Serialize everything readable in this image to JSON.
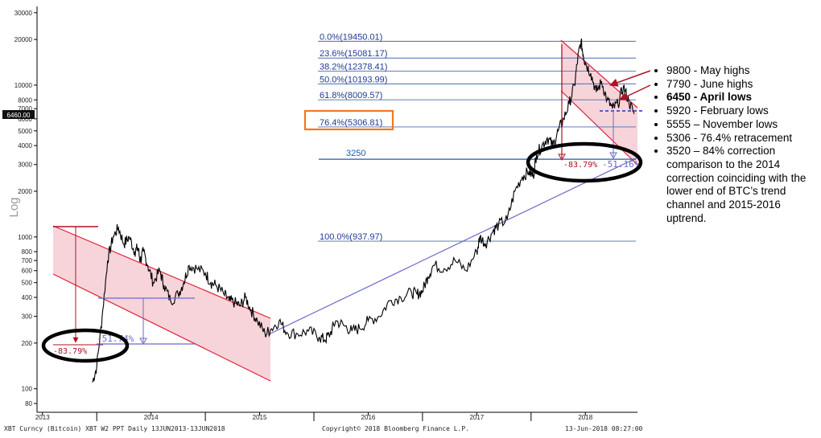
{
  "chart_data": {
    "type": "line",
    "title": "",
    "ylabel": "Log",
    "yscale": "log",
    "ylim": [
      70,
      33000
    ],
    "y_ticks": [
      {
        "value": 30000,
        "label": "30000"
      },
      {
        "value": 20000,
        "label": "20000"
      },
      {
        "value": 10000,
        "label": "10000"
      },
      {
        "value": 8000,
        "label": "8000"
      },
      {
        "value": 7000,
        "label": "7000"
      },
      {
        "value": 6000,
        "label": "6000"
      },
      {
        "value": 5000,
        "label": "5000"
      },
      {
        "value": 4000,
        "label": "4000"
      },
      {
        "value": 3000,
        "label": "3000"
      },
      {
        "value": 2000,
        "label": "2000"
      },
      {
        "value": 1000,
        "label": "1000"
      },
      {
        "value": 800,
        "label": "800"
      },
      {
        "value": 700,
        "label": "700"
      },
      {
        "value": 600,
        "label": "600"
      },
      {
        "value": 500,
        "label": "500"
      },
      {
        "value": 400,
        "label": "400"
      },
      {
        "value": 300,
        "label": "300"
      },
      {
        "value": 200,
        "label": "200"
      },
      {
        "value": 100,
        "label": "100"
      },
      {
        "value": 80,
        "label": "80"
      }
    ],
    "x_labels": [
      {
        "t": 2013.0,
        "label": "2013"
      },
      {
        "t": 2014.0,
        "label": "2014"
      },
      {
        "t": 2015.0,
        "label": "2015"
      },
      {
        "t": 2016.0,
        "label": "2016"
      },
      {
        "t": 2017.0,
        "label": "2017"
      },
      {
        "t": 2018.0,
        "label": "2018"
      }
    ],
    "x_separators": [
      2013.5,
      2014.5,
      2015.5,
      2016.5,
      2017.5
    ],
    "last_price": {
      "value": 6460,
      "label": "6460.00"
    },
    "series": [
      {
        "name": "XBT Curncy (Bitcoin)",
        "x": [
          2013.46,
          2013.5,
          2013.55,
          2013.6,
          2013.65,
          2013.7,
          2013.75,
          2013.8,
          2013.85,
          2013.88,
          2013.9,
          2013.93,
          2013.97,
          2014.02,
          2014.08,
          2014.12,
          2014.18,
          2014.25,
          2014.3,
          2014.35,
          2014.42,
          2014.5,
          2014.55,
          2014.6,
          2014.67,
          2014.72,
          2014.77,
          2014.82,
          2014.87,
          2014.92,
          2014.98,
          2015.05,
          2015.1,
          2015.18,
          2015.25,
          2015.35,
          2015.45,
          2015.55,
          2015.6,
          2015.65,
          2015.7,
          2015.78,
          2015.85,
          2015.92,
          2016.0,
          2016.1,
          2016.2,
          2016.3,
          2016.4,
          2016.45,
          2016.5,
          2016.55,
          2016.6,
          2016.7,
          2016.8,
          2016.9,
          2017.0,
          2017.03,
          2017.08,
          2017.15,
          2017.2,
          2017.28,
          2017.35,
          2017.42,
          2017.48,
          2017.52,
          2017.55,
          2017.6,
          2017.65,
          2017.7,
          2017.75,
          2017.8,
          2017.85,
          2017.9,
          2017.93,
          2017.96,
          2017.98,
          2018.0,
          2018.05,
          2018.1,
          2018.15,
          2018.2,
          2018.25,
          2018.3,
          2018.35,
          2018.4,
          2018.45
        ],
        "values": [
          110,
          140,
          300,
          700,
          1000,
          1150,
          900,
          1000,
          800,
          850,
          700,
          800,
          650,
          500,
          600,
          480,
          380,
          420,
          500,
          650,
          620,
          580,
          500,
          480,
          420,
          380,
          370,
          350,
          400,
          330,
          280,
          230,
          245,
          280,
          235,
          230,
          240,
          220,
          210,
          230,
          280,
          260,
          240,
          250,
          280,
          300,
          380,
          400,
          430,
          420,
          440,
          550,
          650,
          620,
          700,
          600,
          800,
          1000,
          900,
          1100,
          1200,
          1300,
          2000,
          2500,
          2700,
          2500,
          3500,
          4000,
          4500,
          4000,
          5000,
          6000,
          7500,
          10000,
          15000,
          19450,
          16000,
          14000,
          12000,
          9000,
          10500,
          8000,
          7000,
          7500,
          9800,
          7790,
          6460
        ]
      }
    ],
    "fib_levels": [
      {
        "label": "0.0%(19450.01)",
        "value": 19450.01
      },
      {
        "label": "23.6%(15081.17)",
        "value": 15081.17
      },
      {
        "label": "38.2%(12378.41)",
        "value": 12378.41
      },
      {
        "label": "50.0%(10193.99)",
        "value": 10193.99
      },
      {
        "label": "61.8%(8009.57)",
        "value": 8009.57
      },
      {
        "label": "76.4%(5306.81)",
        "value": 5306.81
      },
      {
        "label": "100.0%(937.97)",
        "value": 937.97
      }
    ],
    "support_level": {
      "label": "3250",
      "value": 3250
    },
    "annotations": {
      "drop_2014": "-83.79%",
      "retrace_2014": "-51.74%",
      "drop_2018": "-83.79%",
      "retrace_2018": "-51.16%"
    }
  },
  "footer": {
    "left": "XBT Curncy (Bitcoin) XBT W2 PPT  Daily 13JUN2013-13JUN2018",
    "center": "Copyright© 2018 Bloomberg Finance L.P.",
    "right": "13-Jun-2018 08:27:00"
  },
  "notes": [
    {
      "text": "9800 -  May highs",
      "bold": false
    },
    {
      "text": "7790 - June highs",
      "bold": false
    },
    {
      "text": "6450 - April lows",
      "bold": true
    },
    {
      "text": "5920 -  February lows",
      "bold": false
    },
    {
      "text": "5555 – November lows",
      "bold": false
    },
    {
      "text": "5306 - 76.4% retracement",
      "bold": false
    },
    {
      "text": "3520 – 84% correction comparison to the 2014 correction coinciding with the lower end of BTC’s trend channel and 2015-2016 uptrend.",
      "bold": false
    }
  ]
}
